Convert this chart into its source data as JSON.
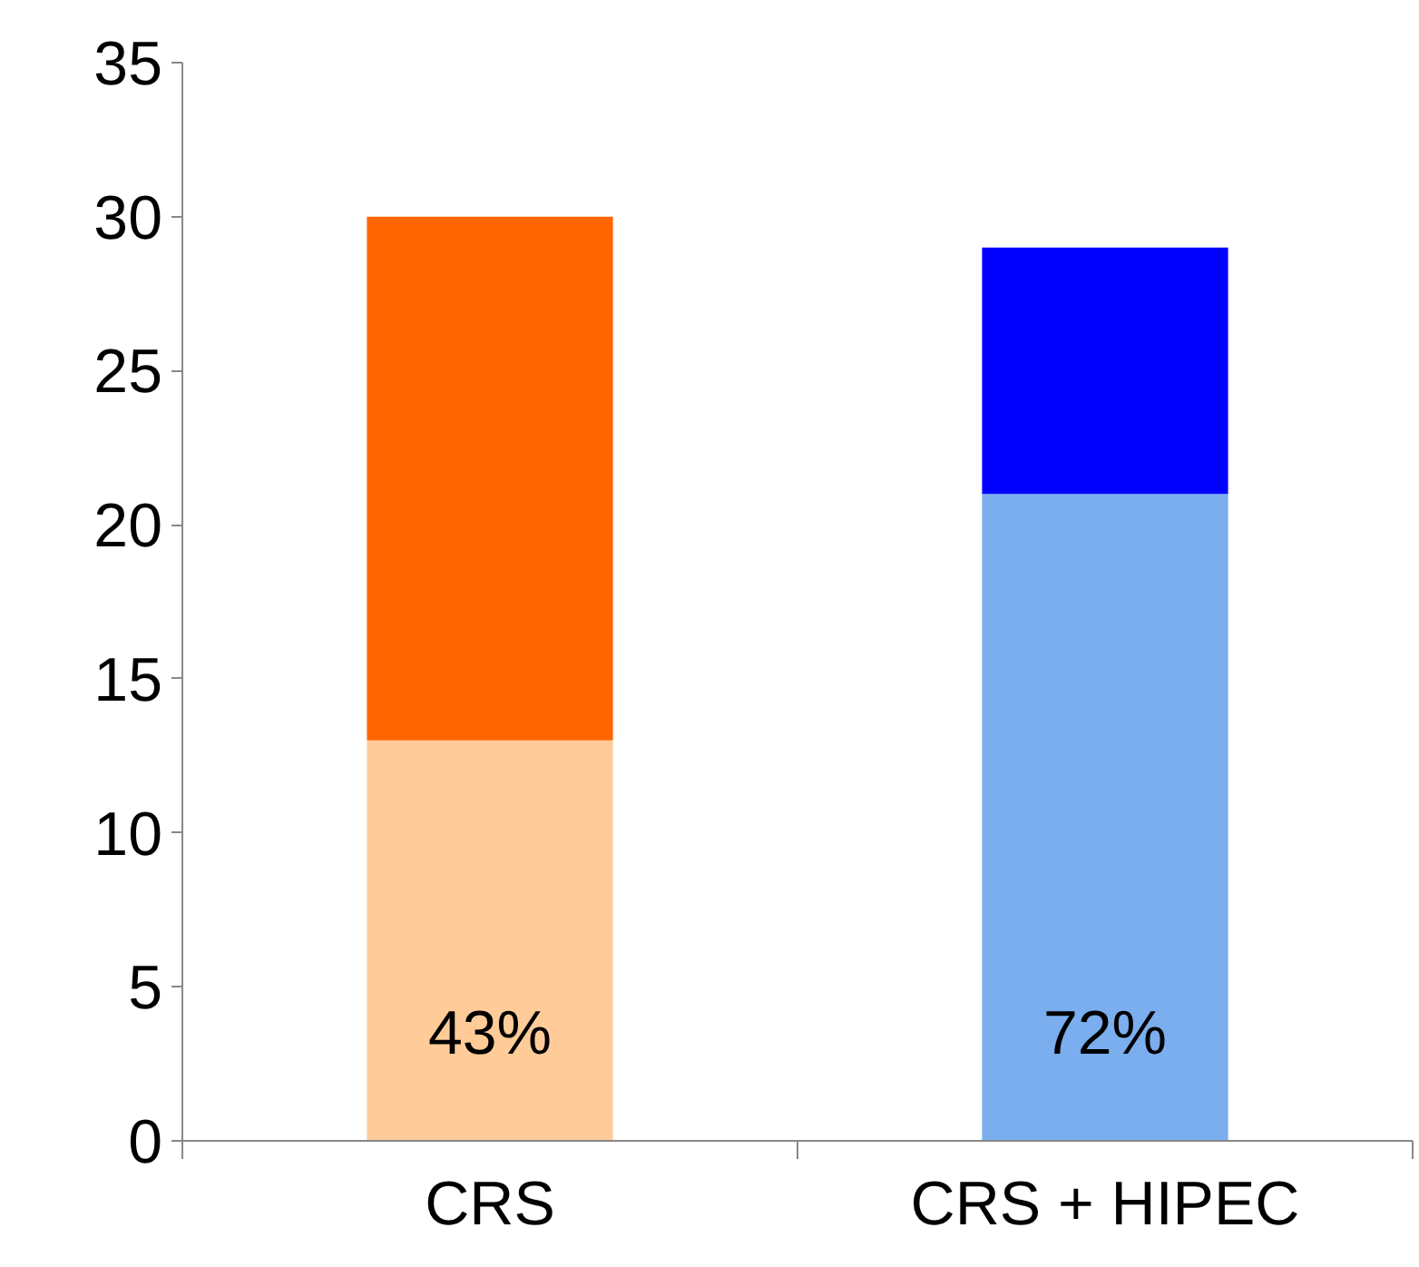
{
  "chart_data": {
    "type": "bar",
    "stacked": true,
    "categories": [
      "CRS",
      "CRS + HIPEC"
    ],
    "series": [
      {
        "colors": [
          "#ffcc99",
          "#7aaeee"
        ],
        "values": [
          13,
          21
        ]
      },
      {
        "colors": [
          "#ff6600",
          "#0000ff"
        ],
        "values": [
          17,
          8
        ]
      }
    ],
    "ylim": [
      0,
      35
    ],
    "yticks": [
      0,
      5,
      10,
      15,
      20,
      25,
      30,
      35
    ],
    "grid": false,
    "annotations": [
      "43%",
      "72%"
    ]
  }
}
